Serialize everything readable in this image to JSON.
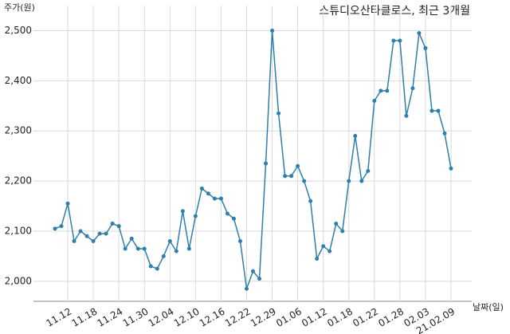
{
  "chart_data": {
    "type": "line",
    "title": "스튜디오산타클로스, 최근 3개월",
    "y_label": "주가(원)",
    "x_label": "날짜(일)",
    "categories": [
      null,
      null,
      "11.12",
      null,
      null,
      null,
      "11.18",
      null,
      null,
      null,
      "11.24",
      null,
      null,
      null,
      "11.30",
      null,
      null,
      null,
      "12.04",
      null,
      null,
      null,
      "12.10",
      null,
      null,
      null,
      "12.16",
      null,
      null,
      null,
      "12.22",
      null,
      null,
      null,
      "12.29",
      null,
      null,
      null,
      "01.06",
      null,
      null,
      null,
      "01.12",
      null,
      null,
      null,
      "01.18",
      null,
      null,
      null,
      "01.22",
      null,
      null,
      null,
      "01.28",
      null,
      null,
      null,
      "02.03",
      null,
      null,
      null,
      "21.02.09"
    ],
    "series": [
      {
        "name": "스튜디오산타클로스",
        "color": "#2e7fab",
        "values": [
          2105,
          2110,
          2155,
          2080,
          2100,
          2090,
          2080,
          2095,
          2095,
          2115,
          2110,
          2065,
          2085,
          2065,
          2065,
          2030,
          2025,
          2050,
          2080,
          2060,
          2140,
          2065,
          2130,
          2185,
          2175,
          2165,
          2165,
          2135,
          2125,
          2080,
          1985,
          2020,
          2005,
          2235,
          2500,
          2335,
          2210,
          2210,
          2230,
          2200,
          2160,
          2045,
          2070,
          2060,
          2115,
          2100,
          2200,
          2290,
          2200,
          2220,
          2360,
          2380,
          2380,
          2480,
          2480,
          2330,
          2385,
          2495,
          2465,
          2340,
          2340,
          2295,
          2225
        ]
      }
    ],
    "ylim": [
      1960,
      2550
    ],
    "yticks": [
      {
        "value": 2000,
        "label": "2,000"
      },
      {
        "value": 2100,
        "label": "2,100"
      },
      {
        "value": 2200,
        "label": "2,200"
      },
      {
        "value": 2300,
        "label": "2,300"
      },
      {
        "value": 2400,
        "label": "2,400"
      },
      {
        "value": 2500,
        "label": "2,500"
      }
    ],
    "grid": true
  }
}
